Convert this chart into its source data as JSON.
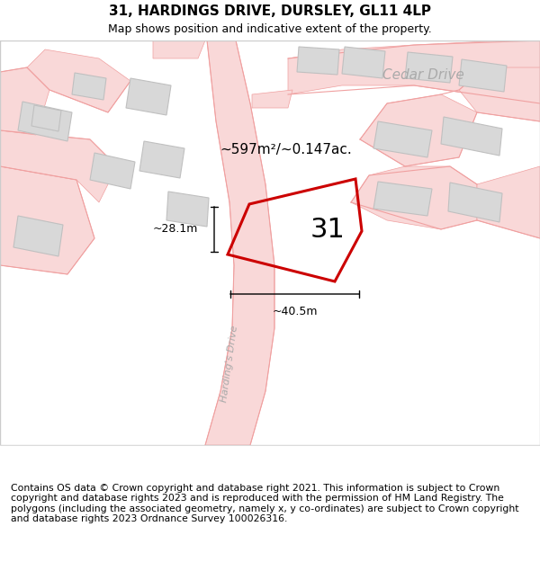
{
  "title": "31, HARDINGS DRIVE, DURSLEY, GL11 4LP",
  "subtitle": "Map shows position and indicative extent of the property.",
  "footer": "Contains OS data © Crown copyright and database right 2021. This information is subject to Crown copyright and database rights 2023 and is reproduced with the permission of HM Land Registry. The polygons (including the associated geometry, namely x, y co-ordinates) are subject to Crown copyright and database rights 2023 Ordnance Survey 100026316.",
  "road_color": "#f9d8d8",
  "road_edge": "#f0a0a0",
  "building_fill": "#d8d8d8",
  "building_edge": "#c0c0c0",
  "plot_edge": "#cc0000",
  "street_color": "#aaaaaa",
  "area_label": "~597m²/~0.147ac.",
  "number_label": "31",
  "cedar_drive": "Cedar Drive",
  "hardings_drive": "Harding's Drive",
  "dim_width": "~40.5m",
  "dim_height": "~28.1m",
  "title_fontsize": 11,
  "subtitle_fontsize": 9,
  "footer_fontsize": 7.8
}
